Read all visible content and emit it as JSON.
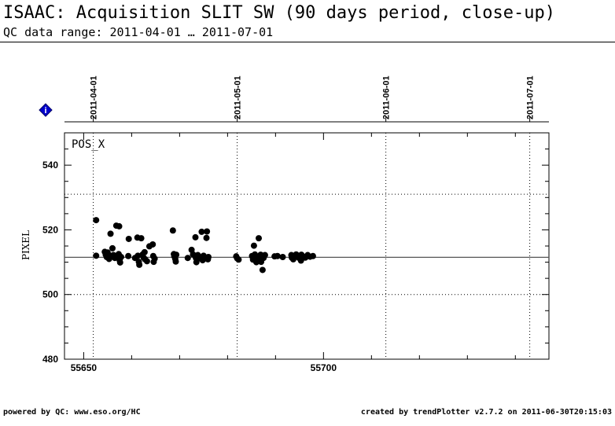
{
  "header": {
    "title": "ISAAC: Acquisition SLIT SW (90 days period, close-up)",
    "subtitle": "QC data range: 2011-04-01 … 2011-07-01"
  },
  "footer": {
    "left": "powered by QC: www.eso.org/HC",
    "right": "created by trendPlotter v2.7.2 on 2011-06-30T20:15:03"
  },
  "info_badge": {
    "icon": "info-diamond-icon",
    "text": "i",
    "color": "#0000cc"
  },
  "chart_data": {
    "type": "scatter",
    "panel_label": "POS_X",
    "xlabel": "",
    "ylabel": "PIXEL",
    "xlim": [
      55646,
      55747
    ],
    "ylim": [
      480,
      550
    ],
    "x_ticks": [
      55650,
      55700
    ],
    "x_minor_step": 10,
    "y_ticks": [
      480,
      500,
      520,
      540
    ],
    "y_minor_step": 5,
    "date_ticks": [
      {
        "x": 55652,
        "label": "2011-04-01"
      },
      {
        "x": 55682,
        "label": "2011-05-01"
      },
      {
        "x": 55713,
        "label": "2011-06-01"
      },
      {
        "x": 55743,
        "label": "2011-07-01"
      }
    ],
    "reference_line": 511.5,
    "dotted_hlines": [
      500,
      531
    ],
    "grid": "dotted vertical at month boundaries",
    "series": [
      {
        "marker_color": "#000000",
        "points": [
          [
            55652.6,
            523.0
          ],
          [
            55652.6,
            512.0
          ],
          [
            55654.4,
            513.2
          ],
          [
            55654.6,
            512.3
          ],
          [
            55654.8,
            511.6
          ],
          [
            55655.0,
            513.0
          ],
          [
            55655.3,
            511.0
          ],
          [
            55655.6,
            518.8
          ],
          [
            55655.9,
            512.0
          ],
          [
            55656.0,
            514.3
          ],
          [
            55656.2,
            512.2
          ],
          [
            55656.5,
            511.3
          ],
          [
            55656.8,
            521.3
          ],
          [
            55656.9,
            512.0
          ],
          [
            55657.3,
            512.5
          ],
          [
            55657.4,
            521.1
          ],
          [
            55657.5,
            510.6
          ],
          [
            55657.6,
            509.9
          ],
          [
            55657.8,
            511.6
          ],
          [
            55659.3,
            511.9
          ],
          [
            55659.4,
            517.2
          ],
          [
            55660.7,
            511.3
          ],
          [
            55661.2,
            517.6
          ],
          [
            55661.3,
            512.0
          ],
          [
            55661.5,
            510.1
          ],
          [
            55661.6,
            509.2
          ],
          [
            55662.0,
            517.4
          ],
          [
            55662.3,
            512.4
          ],
          [
            55662.5,
            511.4
          ],
          [
            55662.7,
            513.1
          ],
          [
            55662.8,
            510.9
          ],
          [
            55663.2,
            510.3
          ],
          [
            55663.7,
            514.9
          ],
          [
            55664.4,
            515.5
          ],
          [
            55664.5,
            511.9
          ],
          [
            55664.6,
            510.1
          ],
          [
            55664.8,
            511.1
          ],
          [
            55668.6,
            519.8
          ],
          [
            55668.8,
            512.5
          ],
          [
            55668.9,
            511.8
          ],
          [
            55669.1,
            511.0
          ],
          [
            55669.2,
            510.2
          ],
          [
            55669.3,
            512.3
          ],
          [
            55671.7,
            511.3
          ],
          [
            55672.5,
            513.8
          ],
          [
            55672.8,
            512.4
          ],
          [
            55673.3,
            517.7
          ],
          [
            55673.4,
            511.3
          ],
          [
            55673.5,
            510.0
          ],
          [
            55673.8,
            512.2
          ],
          [
            55674.2,
            511.2
          ],
          [
            55674.6,
            519.4
          ],
          [
            55674.8,
            510.6
          ],
          [
            55675.0,
            512.0
          ],
          [
            55675.3,
            511.3
          ],
          [
            55675.6,
            517.5
          ],
          [
            55675.7,
            519.5
          ],
          [
            55675.9,
            510.9
          ],
          [
            55676.0,
            511.6
          ],
          [
            55681.8,
            511.8
          ],
          [
            55682.0,
            511.2
          ],
          [
            55682.3,
            510.8
          ],
          [
            55685.1,
            511.9
          ],
          [
            55685.3,
            510.8
          ],
          [
            55685.5,
            515.1
          ],
          [
            55685.7,
            512.4
          ],
          [
            55686.0,
            510.0
          ],
          [
            55686.3,
            511.3
          ],
          [
            55686.5,
            517.4
          ],
          [
            55686.6,
            510.9
          ],
          [
            55686.9,
            512.3
          ],
          [
            55687.0,
            510.1
          ],
          [
            55687.3,
            507.6
          ],
          [
            55687.5,
            511.3
          ],
          [
            55687.8,
            512.2
          ],
          [
            55689.8,
            511.8
          ],
          [
            55690.4,
            511.9
          ],
          [
            55691.5,
            511.6
          ],
          [
            55693.3,
            512.2
          ],
          [
            55693.4,
            511.4
          ],
          [
            55693.7,
            510.9
          ],
          [
            55694.3,
            512.4
          ],
          [
            55694.7,
            512.0
          ],
          [
            55694.9,
            511.3
          ],
          [
            55695.3,
            510.5
          ],
          [
            55695.4,
            512.3
          ],
          [
            55695.7,
            511.8
          ],
          [
            55696.2,
            511.4
          ],
          [
            55696.7,
            512.2
          ],
          [
            55697.2,
            511.7
          ],
          [
            55697.8,
            511.9
          ]
        ]
      }
    ]
  }
}
